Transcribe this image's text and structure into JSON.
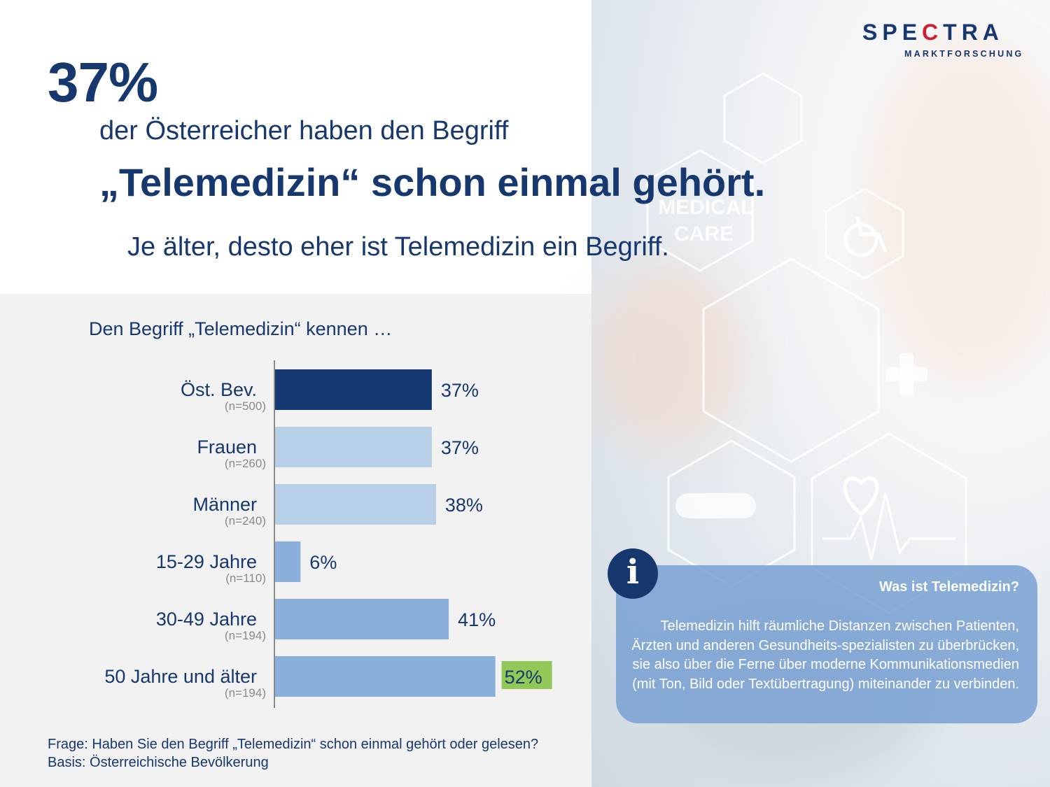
{
  "brand": {
    "logo_prefix": "SPE",
    "logo_mark": "C",
    "logo_suffix": "TRA",
    "logo_sub": "MARKTFORSCHUNG"
  },
  "headline": {
    "percent": "37%",
    "line1": "der Österreicher haben den Begriff",
    "line2": "„Telemedizin“ schon einmal gehört.",
    "line3": "Je älter, desto eher ist Telemedizin ein Begriff."
  },
  "chart_data": {
    "type": "bar",
    "orientation": "horizontal",
    "title": "Den Begriff „Telemedizin“ kennen …",
    "categories": [
      "Öst. Bev.",
      "Frauen",
      "Männer",
      "15-29 Jahre",
      "30-49 Jahre",
      "50 Jahre und älter"
    ],
    "sample_sizes": [
      "(n=500)",
      "(n=260)",
      "(n=240)",
      "(n=110)",
      "(n=194)",
      "(n=194)"
    ],
    "values": [
      37,
      37,
      38,
      6,
      41,
      52
    ],
    "value_labels": [
      "37%",
      "37%",
      "38%",
      "6%",
      "41%",
      "52%"
    ],
    "unit": "%",
    "xlim": [
      0,
      100
    ],
    "colors": [
      "#143872",
      "#b8cfe8",
      "#b8cfe8",
      "#8aafda",
      "#8aafda",
      "#8aafda"
    ],
    "highlight_label_index": 5,
    "highlight_color": "#92c857",
    "grid": false
  },
  "footnotes": {
    "question": "Frage: Haben Sie den Begriff „Telemedizin“ schon einmal gehört oder gelesen?",
    "basis": "Basis: Österreichische Bevölkerung"
  },
  "info": {
    "icon": "info-icon",
    "icon_glyph": "i",
    "title": "Was ist Telemedizin?",
    "text": "Telemedizin hilft räumliche Distanzen zwischen Patienten, Ärzten und anderen Gesundheits-spezialisten zu überbrücken, sie also über die Ferne über moderne Kommunikationsmedien (mit Ton, Bild oder Textübertragung) miteinander zu verbinden."
  },
  "background_image": {
    "overlay_text_1": "MEDICAL",
    "overlay_text_2": "CARE"
  },
  "colors": {
    "primary": "#17376f",
    "accent_red": "#cc1f2f",
    "panel_gray": "#f2f2f2"
  }
}
